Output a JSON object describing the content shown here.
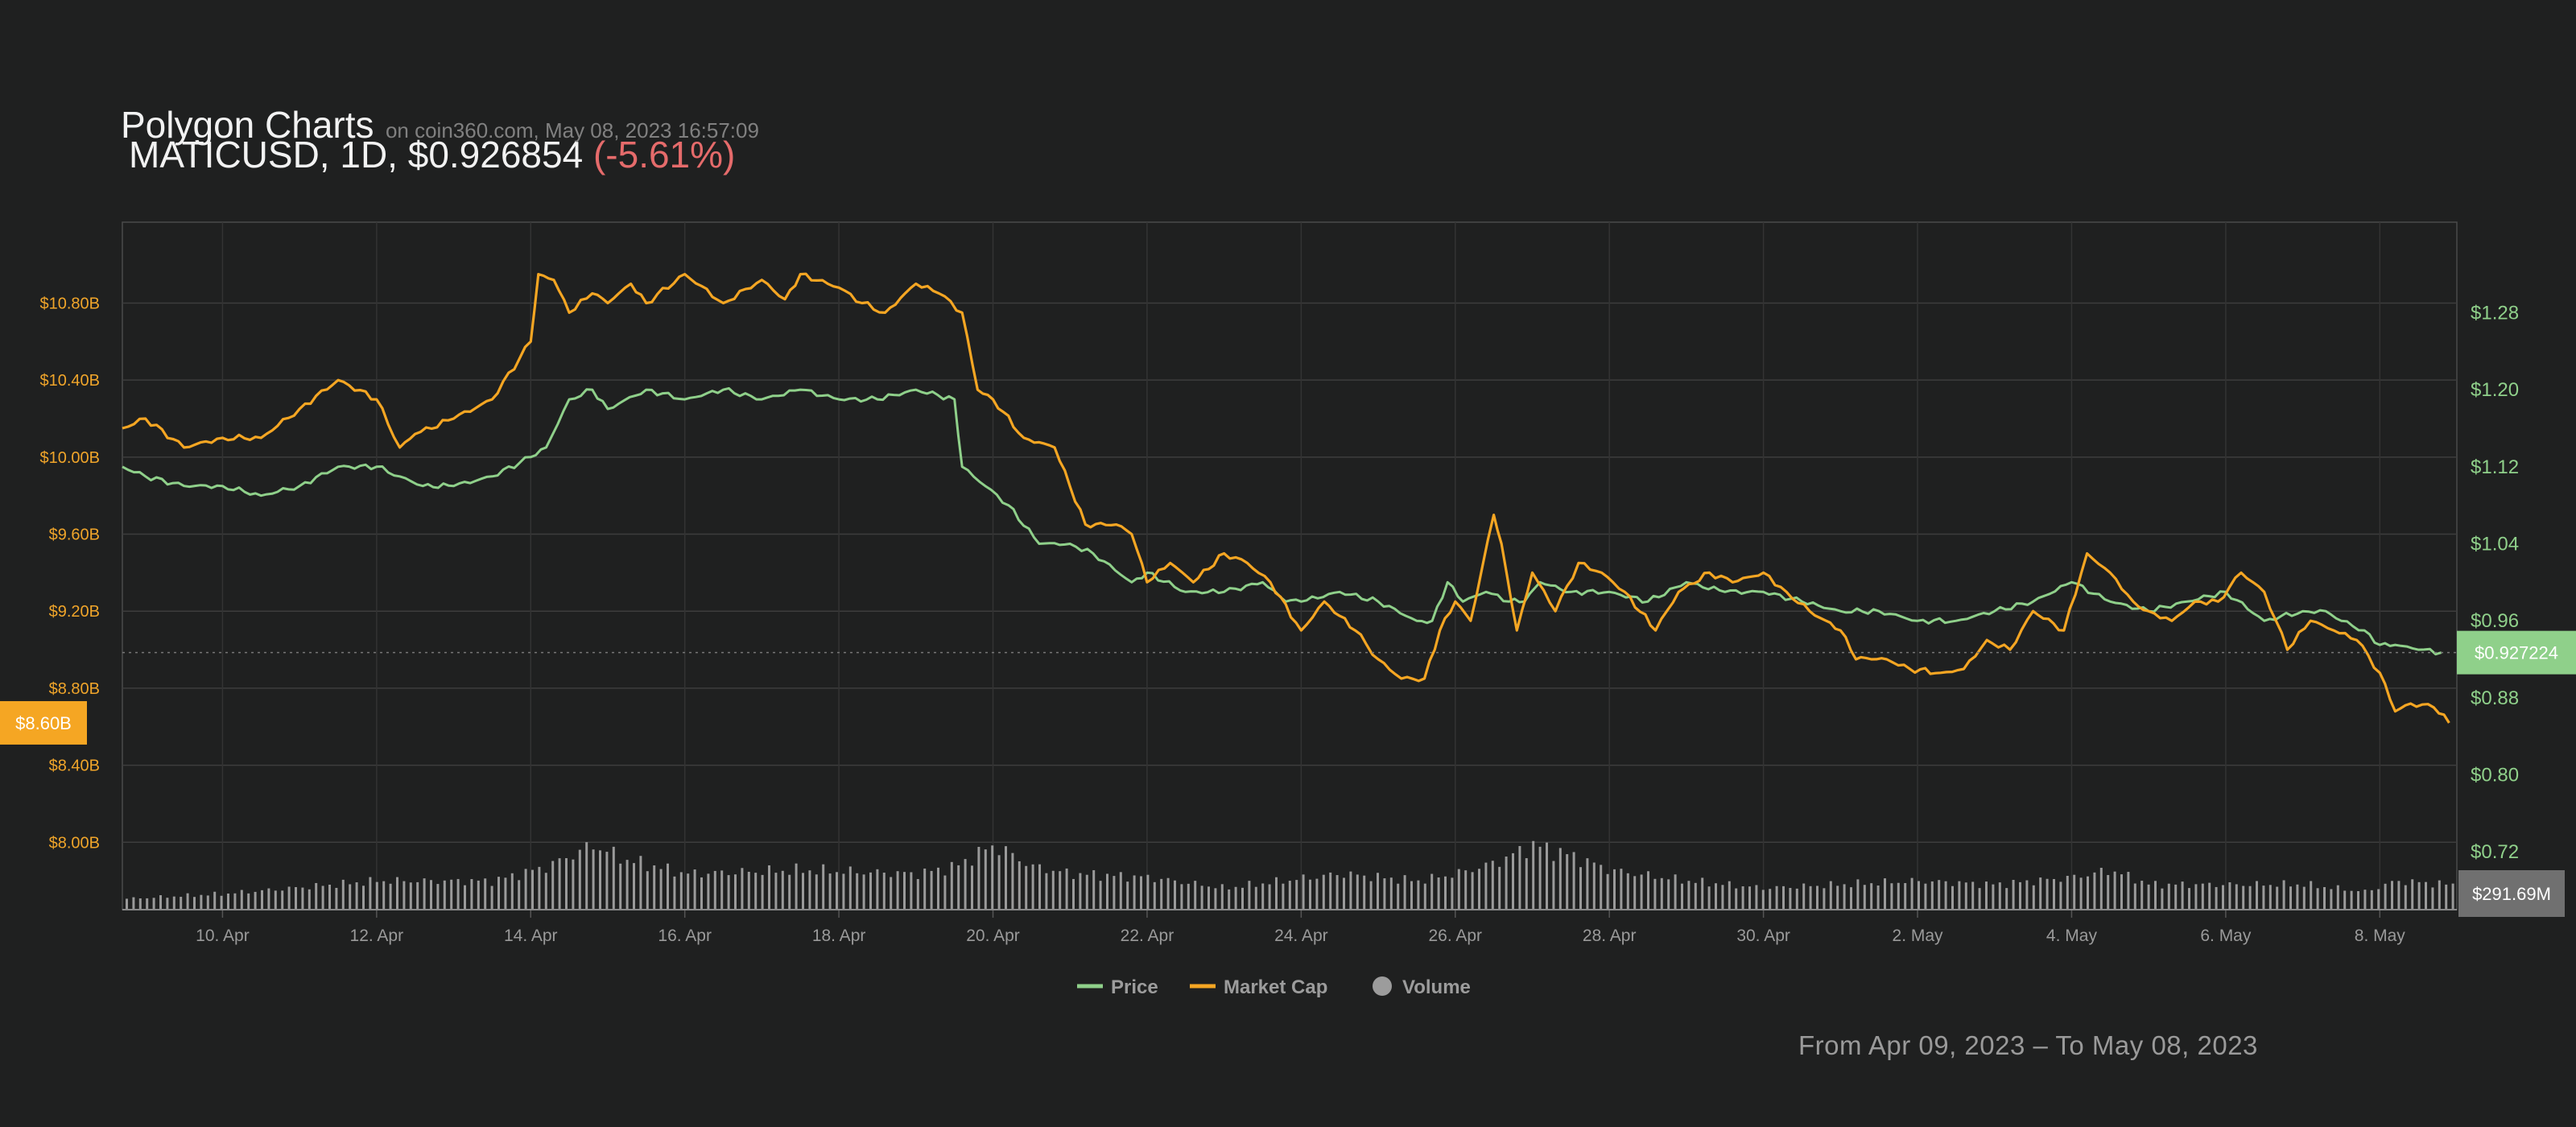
{
  "header": {
    "title": "Polygon Charts",
    "source": "on coin360.com, May 08, 2023 16:57:09",
    "symbol_line": "MATICUSD, 1D, $0.926854",
    "change": "(-5.61%)"
  },
  "colors": {
    "price": "#8fd08a",
    "market_cap": "#f5a623",
    "volume": "#b0b0b0",
    "background": "#1f2020",
    "negative": "#e56b6b"
  },
  "chart_data": {
    "type": "line",
    "x_labels": [
      "10. Apr",
      "12. Apr",
      "14. Apr",
      "16. Apr",
      "18. Apr",
      "20. Apr",
      "22. Apr",
      "24. Apr",
      "26. Apr",
      "28. Apr",
      "30. Apr",
      "2. May",
      "4. May",
      "6. May",
      "8. May"
    ],
    "x_label_days": [
      10,
      12,
      14,
      16,
      18,
      20,
      22,
      24,
      26,
      28,
      30,
      32,
      34,
      36,
      38
    ],
    "x_range_days": [
      8.7,
      39.0
    ],
    "y_left_ticks": [
      "$10.80B",
      "$10.40B",
      "$10.00B",
      "$9.60B",
      "$9.20B",
      "$8.80B",
      "$8.40B",
      "$8.00B"
    ],
    "y_left_values": [
      10.8,
      10.4,
      10.0,
      9.6,
      9.2,
      8.8,
      8.4,
      8.0
    ],
    "y_left_range": [
      7.65,
      11.22
    ],
    "y_right_ticks": [
      "$1.28",
      "$1.20",
      "$1.12",
      "$1.04",
      "$0.96",
      "$0.88",
      "$0.80",
      "$0.72"
    ],
    "y_right_values": [
      1.28,
      1.2,
      1.12,
      1.04,
      0.96,
      0.88,
      0.8,
      0.72
    ],
    "y_right_range": [
      0.66,
      1.374
    ],
    "series": [
      {
        "name": "Price",
        "axis": "right",
        "x": [
          8.7,
          9.0,
          9.5,
          10.0,
          10.5,
          11.0,
          11.5,
          12.0,
          12.3,
          12.6,
          13.0,
          13.5,
          14.0,
          14.2,
          14.5,
          14.8,
          15.0,
          15.5,
          16.0,
          16.5,
          17.0,
          17.5,
          18.0,
          18.5,
          19.0,
          19.5,
          19.6,
          19.9,
          20.2,
          20.6,
          21.0,
          21.3,
          21.8,
          22.0,
          22.5,
          23.0,
          23.5,
          23.8,
          24.0,
          24.5,
          25.0,
          25.5,
          25.7,
          25.9,
          26.1,
          26.4,
          26.7,
          26.9,
          27.1,
          27.5,
          28.0,
          28.5,
          29.0,
          29.5,
          30.0,
          30.5,
          31.0,
          31.5,
          32.0,
          32.5,
          33.0,
          33.5,
          34.0,
          34.5,
          35.0,
          35.5,
          36.0,
          36.5,
          37.0,
          37.3,
          37.5,
          37.8,
          38.0,
          38.2,
          38.5,
          38.8
        ],
        "y": [
          1.12,
          1.11,
          1.1,
          1.1,
          1.09,
          1.1,
          1.12,
          1.12,
          1.11,
          1.1,
          1.1,
          1.11,
          1.13,
          1.14,
          1.19,
          1.2,
          1.18,
          1.2,
          1.19,
          1.2,
          1.19,
          1.2,
          1.19,
          1.19,
          1.2,
          1.19,
          1.12,
          1.1,
          1.08,
          1.04,
          1.04,
          1.03,
          1.0,
          1.01,
          0.99,
          0.99,
          1.0,
          0.98,
          0.98,
          0.99,
          0.98,
          0.96,
          0.96,
          1.0,
          0.98,
          0.99,
          0.98,
          0.98,
          1.0,
          0.99,
          0.99,
          0.98,
          1.0,
          0.99,
          0.99,
          0.98,
          0.97,
          0.97,
          0.96,
          0.96,
          0.97,
          0.98,
          1.0,
          0.98,
          0.97,
          0.98,
          0.99,
          0.96,
          0.97,
          0.97,
          0.96,
          0.95,
          0.935,
          0.935,
          0.93,
          0.927
        ]
      },
      {
        "name": "Market Cap",
        "axis": "left",
        "x": [
          8.7,
          9.0,
          9.5,
          10.0,
          10.5,
          11.0,
          11.5,
          12.0,
          12.3,
          12.5,
          13.0,
          13.5,
          14.0,
          14.1,
          14.3,
          14.5,
          14.8,
          15.0,
          15.3,
          15.5,
          16.0,
          16.5,
          17.0,
          17.3,
          17.5,
          18.0,
          18.3,
          18.6,
          19.0,
          19.3,
          19.6,
          19.8,
          20.0,
          20.4,
          20.8,
          21.2,
          21.6,
          21.8,
          22.0,
          22.3,
          22.6,
          23.0,
          23.3,
          23.6,
          24.0,
          24.3,
          24.7,
          25.0,
          25.3,
          25.6,
          25.8,
          26.0,
          26.2,
          26.5,
          26.6,
          26.8,
          27.0,
          27.3,
          27.6,
          27.9,
          28.2,
          28.6,
          28.9,
          29.3,
          29.6,
          30.0,
          30.3,
          30.6,
          31.0,
          31.2,
          31.4,
          31.6,
          31.9,
          32.3,
          32.6,
          32.9,
          33.2,
          33.5,
          33.9,
          34.2,
          34.5,
          34.8,
          35.0,
          35.3,
          35.6,
          35.9,
          36.2,
          36.5,
          36.8,
          37.1,
          37.4,
          37.7,
          38.0,
          38.2,
          38.4,
          38.7,
          38.9
        ],
        "y": [
          10.15,
          10.2,
          10.05,
          10.1,
          10.1,
          10.25,
          10.4,
          10.3,
          10.05,
          10.12,
          10.2,
          10.3,
          10.6,
          10.95,
          10.92,
          10.75,
          10.85,
          10.8,
          10.9,
          10.8,
          10.95,
          10.8,
          10.92,
          10.82,
          10.95,
          10.88,
          10.8,
          10.75,
          10.9,
          10.85,
          10.75,
          10.35,
          10.3,
          10.1,
          10.05,
          9.65,
          9.65,
          9.6,
          9.35,
          9.45,
          9.35,
          9.5,
          9.45,
          9.35,
          9.1,
          9.25,
          9.1,
          8.95,
          8.85,
          8.85,
          9.1,
          9.25,
          9.15,
          9.7,
          9.55,
          9.1,
          9.4,
          9.2,
          9.45,
          9.4,
          9.3,
          9.1,
          9.3,
          9.4,
          9.35,
          9.4,
          9.3,
          9.2,
          9.1,
          8.95,
          8.95,
          8.95,
          8.9,
          8.88,
          8.9,
          9.05,
          9.0,
          9.2,
          9.1,
          9.5,
          9.4,
          9.25,
          9.2,
          9.15,
          9.25,
          9.25,
          9.4,
          9.3,
          9.0,
          9.15,
          9.1,
          9.05,
          8.88,
          8.68,
          8.72,
          8.7,
          8.62
        ]
      },
      {
        "name": "Volume",
        "axis": "volume",
        "x": [
          8.7,
          10.0,
          12.0,
          13.5,
          14.2,
          14.8,
          15.2,
          16.0,
          17.5,
          19.0,
          19.5,
          20.0,
          20.5,
          21.0,
          22.0,
          23.0,
          24.5,
          25.5,
          26.0,
          26.5,
          27.0,
          27.5,
          28.0,
          29.0,
          30.0,
          31.0,
          32.0,
          33.0,
          34.0,
          34.5,
          35.0,
          36.0,
          37.0,
          37.8,
          38.2,
          38.9
        ],
        "y": [
          0.15,
          0.22,
          0.4,
          0.4,
          0.6,
          0.9,
          0.7,
          0.5,
          0.55,
          0.5,
          0.6,
          0.9,
          0.6,
          0.5,
          0.45,
          0.3,
          0.5,
          0.4,
          0.5,
          0.65,
          0.9,
          0.75,
          0.55,
          0.4,
          0.3,
          0.35,
          0.4,
          0.35,
          0.45,
          0.55,
          0.35,
          0.35,
          0.35,
          0.25,
          0.4,
          0.35
        ]
      }
    ],
    "price_marker": "$0.927224",
    "market_cap_marker": "$8.60B",
    "volume_marker": "$291.69M",
    "legend_position": "bottom-center",
    "grid": true
  },
  "legend": {
    "price": "Price",
    "market_cap": "Market Cap",
    "volume": "Volume"
  },
  "range_text": "From Apr 09, 2023 – To May 08, 2023"
}
